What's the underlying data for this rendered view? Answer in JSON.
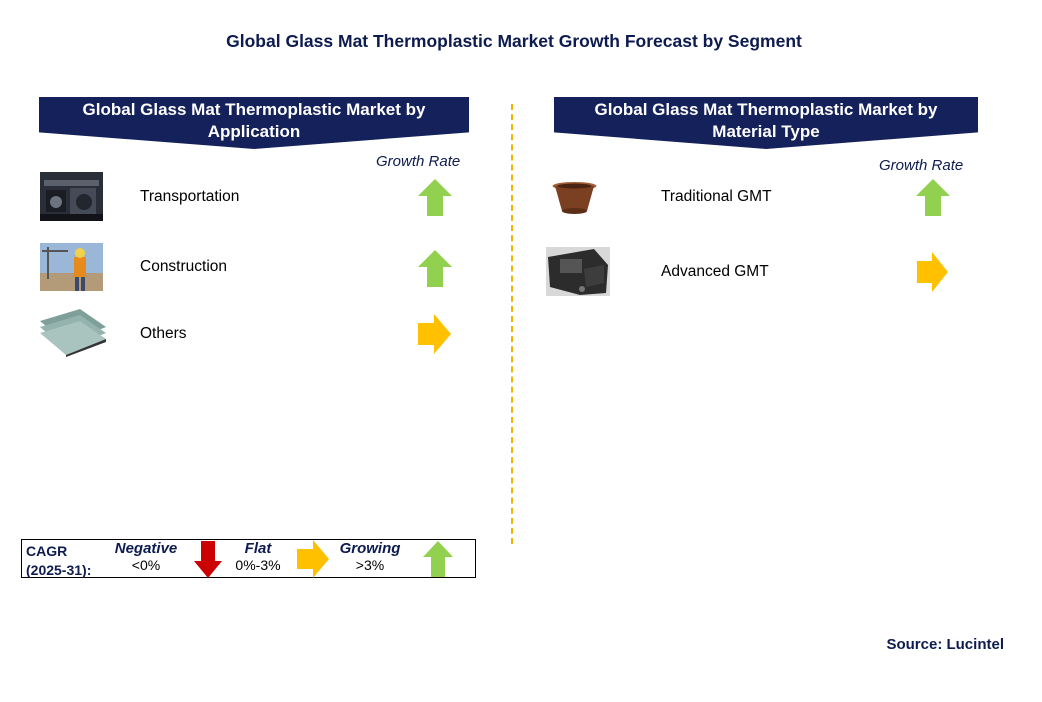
{
  "title": "Global Glass Mat Thermoplastic Market Growth Forecast by Segment",
  "left_panel": {
    "title_line1": "Global Glass Mat Thermoplastic Market by",
    "title_line2": "Application",
    "growth_header": "Growth Rate",
    "items": [
      {
        "label": "Transportation",
        "image": "transportation-image",
        "trend": "growing"
      },
      {
        "label": "Construction",
        "image": "construction-worker-image",
        "trend": "growing"
      },
      {
        "label": "Others",
        "image": "glass-panels-image",
        "trend": "flat"
      }
    ]
  },
  "right_panel": {
    "title_line1": "Global Glass Mat Thermoplastic Market by",
    "title_line2": "Material Type",
    "growth_header": "Growth Rate",
    "items": [
      {
        "label": "Traditional GMT",
        "image": "molded-bowl-image",
        "trend": "growing"
      },
      {
        "label": "Advanced GMT",
        "image": "molded-part-image",
        "trend": "flat"
      }
    ]
  },
  "legend": {
    "cagr_line1": "CAGR",
    "cagr_line2": "(2025-31):",
    "negative": {
      "name": "Negative",
      "range": "<0%",
      "color": "#cc0000"
    },
    "flat": {
      "name": "Flat",
      "range": "0%-3%",
      "color": "#ffc000"
    },
    "growing": {
      "name": "Growing",
      "range": ">3%",
      "color": "#92d050"
    }
  },
  "source": "Source: Lucintel"
}
